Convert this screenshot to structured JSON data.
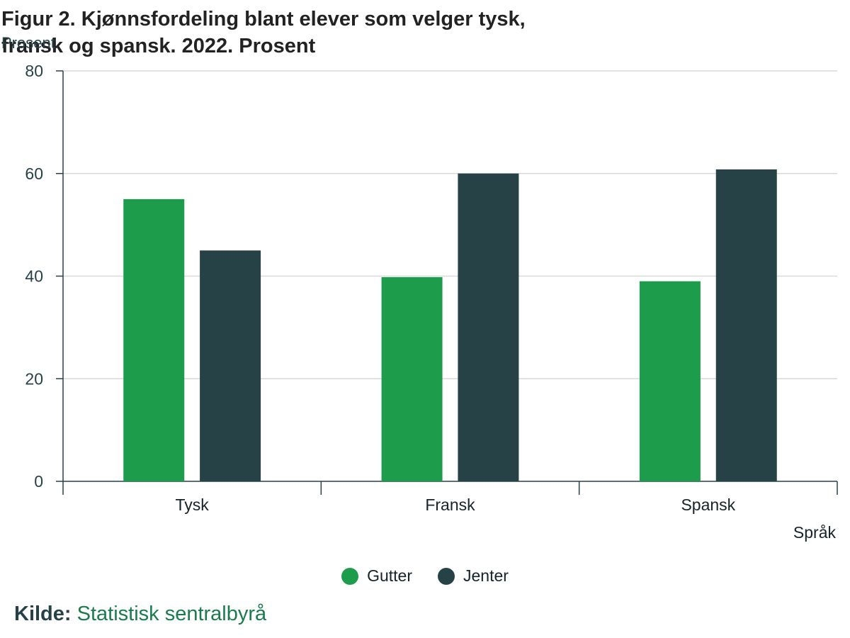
{
  "title_line1": "Figur 2. Kjønnsfordeling blant elever som velger tysk,",
  "title_line2": "fransk og spansk. 2022. Prosent",
  "source_label": "Kilde:",
  "source_value": "Statistisk sentralbyrå",
  "colors": {
    "gutter": "#1d9c4b",
    "jenter": "#274247",
    "grid": "#d9d9d9",
    "axis": "#274247"
  },
  "chart_data": {
    "type": "bar",
    "ylabel": "Prosent",
    "xlabel": "Språk",
    "categories": [
      "Tysk",
      "Fransk",
      "Spansk"
    ],
    "series": [
      {
        "name": "Gutter",
        "values": [
          55,
          39.8,
          39
        ]
      },
      {
        "name": "Jenter",
        "values": [
          45,
          60,
          60.8
        ]
      }
    ],
    "ylim": [
      0,
      80
    ],
    "yticks": [
      "0",
      "20",
      "40",
      "60",
      "80"
    ],
    "grid": true,
    "legend_position": "bottom"
  }
}
